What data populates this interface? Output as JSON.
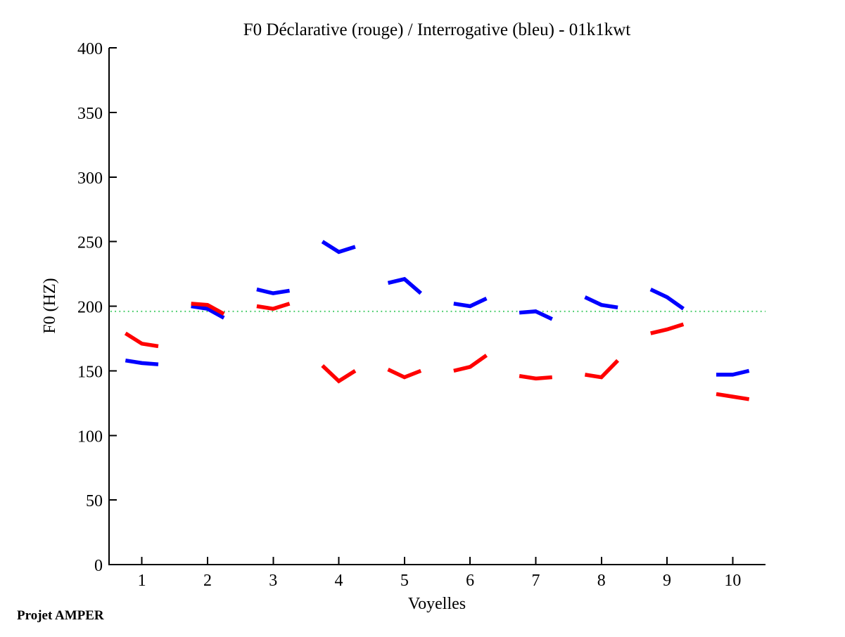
{
  "footer": {
    "credit": "Projet AMPER"
  },
  "chart_data": {
    "type": "line",
    "title": "F0 Déclarative (rouge) / Interrogative (bleu) - 01k1kwt",
    "xlabel": "Voyelles",
    "ylabel": "F0 (HZ)",
    "xlim": [
      0.5,
      10.5
    ],
    "ylim": [
      0,
      400
    ],
    "xticks": [
      1,
      2,
      3,
      4,
      5,
      6,
      7,
      8,
      9,
      10
    ],
    "yticks": [
      0,
      50,
      100,
      150,
      200,
      250,
      300,
      350,
      400
    ],
    "grid": false,
    "legend_position": "none (color meaning given in title: rouge=red, bleu=blue)",
    "axis_color": "#000000",
    "reference_line": {
      "y": 196,
      "color": "#44cc66",
      "style": "dotted"
    },
    "line_width": 5.5,
    "series": [
      {
        "name": "Déclarative",
        "color": "#ff0000",
        "segments": [
          {
            "x": [
              0.75,
              1.0,
              1.25
            ],
            "y": [
              179,
              171,
              169
            ]
          },
          {
            "x": [
              1.75,
              2.0,
              2.25
            ],
            "y": [
              202,
              201,
              194
            ]
          },
          {
            "x": [
              2.75,
              3.0,
              3.25
            ],
            "y": [
              200,
              198,
              202
            ]
          },
          {
            "x": [
              3.75,
              4.0,
              4.25
            ],
            "y": [
              154,
              142,
              150
            ]
          },
          {
            "x": [
              4.75,
              5.0,
              5.25
            ],
            "y": [
              151,
              145,
              150
            ]
          },
          {
            "x": [
              5.75,
              6.0,
              6.25
            ],
            "y": [
              150,
              153,
              162
            ]
          },
          {
            "x": [
              6.75,
              7.0,
              7.25
            ],
            "y": [
              146,
              144,
              145
            ]
          },
          {
            "x": [
              7.75,
              8.0,
              8.25
            ],
            "y": [
              147,
              145,
              158
            ]
          },
          {
            "x": [
              8.75,
              9.0,
              9.25
            ],
            "y": [
              179,
              182,
              186
            ]
          },
          {
            "x": [
              9.75,
              10.0,
              10.25
            ],
            "y": [
              132,
              130,
              128
            ]
          }
        ]
      },
      {
        "name": "Interrogative",
        "color": "#0000ff",
        "segments": [
          {
            "x": [
              0.75,
              1.0,
              1.25
            ],
            "y": [
              158,
              156,
              155
            ]
          },
          {
            "x": [
              1.75,
              2.0,
              2.25
            ],
            "y": [
              200,
              198,
              191
            ]
          },
          {
            "x": [
              2.75,
              3.0,
              3.25
            ],
            "y": [
              213,
              210,
              212
            ]
          },
          {
            "x": [
              3.75,
              4.0,
              4.25
            ],
            "y": [
              250,
              242,
              246
            ]
          },
          {
            "x": [
              4.75,
              5.0,
              5.25
            ],
            "y": [
              218,
              221,
              210
            ]
          },
          {
            "x": [
              5.75,
              6.0,
              6.25
            ],
            "y": [
              202,
              200,
              206
            ]
          },
          {
            "x": [
              6.75,
              7.0,
              7.25
            ],
            "y": [
              195,
              196,
              190
            ]
          },
          {
            "x": [
              7.75,
              8.0,
              8.25
            ],
            "y": [
              207,
              201,
              199
            ]
          },
          {
            "x": [
              8.75,
              9.0,
              9.25
            ],
            "y": [
              213,
              207,
              198
            ]
          },
          {
            "x": [
              9.75,
              10.0,
              10.25
            ],
            "y": [
              147,
              147,
              150
            ]
          }
        ]
      }
    ]
  }
}
